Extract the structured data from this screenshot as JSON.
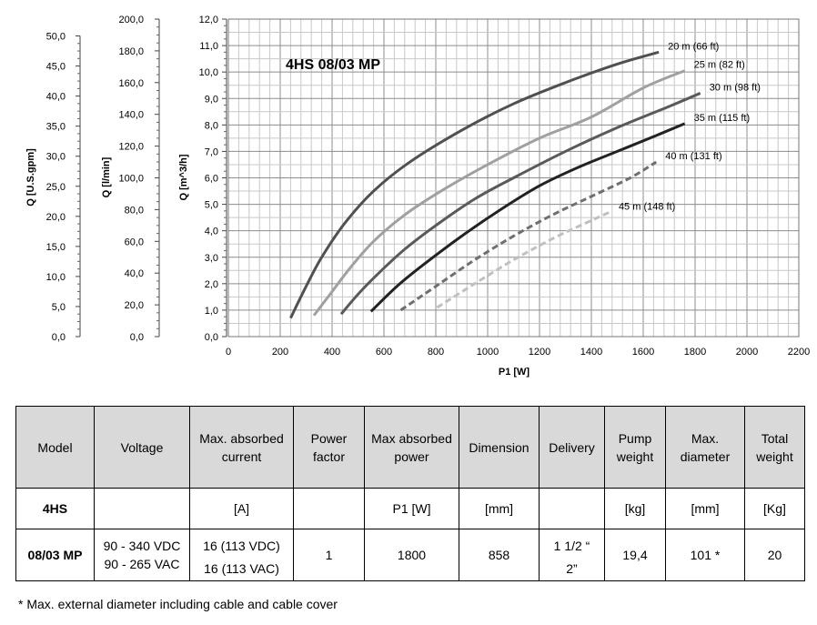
{
  "chart_data": {
    "type": "line",
    "title": "4HS 08/03 MP",
    "xlabel": "P1 [W]",
    "x_ticks": [
      0,
      200,
      400,
      600,
      800,
      1000,
      1200,
      1400,
      1600,
      1800,
      2000,
      2200
    ],
    "xlim": [
      0,
      2200
    ],
    "grid": true,
    "y_axes": [
      {
        "label": "Q [m^3/h]",
        "ylim": [
          0,
          12
        ],
        "ticks": [
          "0,0",
          "1,0",
          "2,0",
          "3,0",
          "4,0",
          "5,0",
          "6,0",
          "7,0",
          "8,0",
          "9,0",
          "10,0",
          "11,0",
          "12,0"
        ]
      },
      {
        "label": "Q [l/min]",
        "ylim": [
          0,
          200
        ],
        "ticks": [
          "0,0",
          "20,0",
          "40,0",
          "60,0",
          "80,0",
          "100,0",
          "120,0",
          "140,0",
          "160,0",
          "180,0",
          "200,0"
        ]
      },
      {
        "label": "Q [U.S.gpm]",
        "ylim": [
          0,
          52.8
        ],
        "ticks": [
          "0,0",
          "5,0",
          "10,0",
          "15,0",
          "20,0",
          "25,0",
          "30,0",
          "35,0",
          "40,0",
          "45,0",
          "50,0"
        ]
      }
    ],
    "series": [
      {
        "name": "20 m (66 ft)",
        "color": "#505050",
        "dashed": false,
        "x": [
          240,
          300,
          360,
          450,
          560,
          700,
          900,
          1100,
          1300,
          1500,
          1660
        ],
        "y": [
          0.7,
          1.9,
          3.0,
          4.3,
          5.5,
          6.6,
          7.8,
          8.8,
          9.6,
          10.3,
          10.75
        ]
      },
      {
        "name": "25 m (82 ft)",
        "color": "#a0a0a0",
        "dashed": false,
        "x": [
          330,
          400,
          470,
          560,
          680,
          820,
          1000,
          1200,
          1400,
          1600,
          1760
        ],
        "y": [
          0.8,
          1.7,
          2.6,
          3.6,
          4.6,
          5.5,
          6.5,
          7.5,
          8.3,
          9.4,
          10.05
        ]
      },
      {
        "name": "30 m (98 ft)",
        "color": "#5a5a5a",
        "dashed": false,
        "x": [
          435,
          500,
          580,
          680,
          800,
          950,
          1100,
          1300,
          1500,
          1700,
          1820
        ],
        "y": [
          0.85,
          1.6,
          2.4,
          3.3,
          4.2,
          5.2,
          6.0,
          7.0,
          7.9,
          8.7,
          9.2
        ]
      },
      {
        "name": "35 m (115 ft)",
        "color": "#222222",
        "dashed": false,
        "x": [
          550,
          650,
          750,
          900,
          1050,
          1200,
          1350,
          1500,
          1650,
          1760
        ],
        "y": [
          0.95,
          1.9,
          2.7,
          3.8,
          4.8,
          5.7,
          6.4,
          7.0,
          7.6,
          8.05
        ]
      },
      {
        "name": "40 m (131 ft)",
        "color": "#6f6f6f",
        "dashed": true,
        "x": [
          665,
          800,
          950,
          1100,
          1250,
          1400,
          1550,
          1650
        ],
        "y": [
          1.0,
          1.9,
          2.9,
          3.8,
          4.6,
          5.3,
          6.0,
          6.6
        ]
      },
      {
        "name": "45 m (148 ft)",
        "color": "#c0c0c0",
        "dashed": true,
        "x": [
          805,
          950,
          1100,
          1250,
          1380,
          1470
        ],
        "y": [
          1.1,
          2.0,
          2.9,
          3.7,
          4.3,
          4.7
        ]
      }
    ]
  },
  "table": {
    "headers": [
      "Model",
      "Voltage",
      "Max. absorbed current",
      "Power factor",
      "Max absorbed power",
      "Dimension",
      "Delivery",
      "Pump weight",
      "Max. diameter",
      "Total weight"
    ],
    "units": [
      "4HS",
      "",
      "[A]",
      "",
      "P1 [W]",
      "[mm]",
      "",
      "[kg]",
      "[mm]",
      "[Kg]"
    ],
    "values": {
      "model": "08/03 MP",
      "voltage_1": "90 - 340 VDC",
      "voltage_2": "90 - 265 VAC",
      "current_1": "16 (113 VDC)",
      "current_2": "16 (113 VAC)",
      "power_factor": "1",
      "power": "1800",
      "dimension": "858",
      "delivery_1": "1 1/2 “",
      "delivery_2": "2”",
      "pump_weight": "19,4",
      "max_diameter": "101 *",
      "total_weight": "20"
    }
  },
  "footnote": "* Max. external diameter including cable and cable cover"
}
